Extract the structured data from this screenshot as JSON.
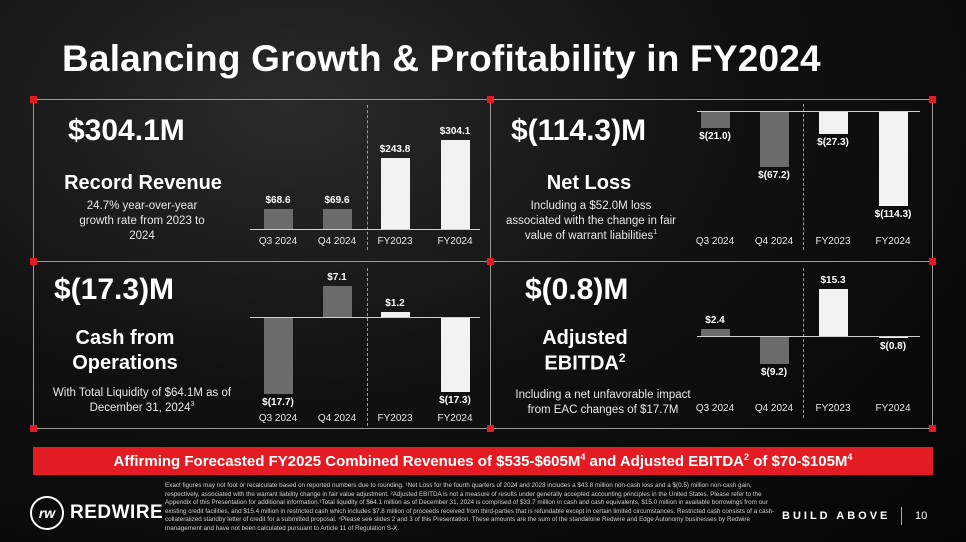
{
  "title": "Balancing Growth & Profitability in FY2024",
  "panels": [
    {
      "headline": "$304.1M",
      "subtitle": "Record Revenue",
      "description": "24.7% year-over-year growth rate from 2023 to 2024",
      "description_sup": "",
      "chart_data": {
        "type": "bar",
        "categories": [
          "Q3 2024",
          "Q4 2024",
          "FY2023",
          "FY2024"
        ],
        "values": [
          68.6,
          69.6,
          243.8,
          304.1
        ],
        "value_labels": [
          "$68.6",
          "$69.6",
          "$243.8",
          "$304.1"
        ],
        "colors": [
          "#6b6b6b",
          "#6b6b6b",
          "#f2f2f2",
          "#f2f2f2"
        ],
        "xlabel": "",
        "ylabel": ""
      }
    },
    {
      "headline": "$(114.3)M",
      "subtitle": "Net Loss",
      "description": "Including a $52.0M loss associated with the change in fair value of warrant liabilities",
      "description_sup": "1",
      "chart_data": {
        "type": "bar",
        "categories": [
          "Q3 2024",
          "Q4 2024",
          "FY2023",
          "FY2024"
        ],
        "values": [
          -21.0,
          -67.2,
          -27.3,
          -114.3
        ],
        "value_labels": [
          "$(21.0)",
          "$(67.2)",
          "$(27.3)",
          "$(114.3)"
        ],
        "colors": [
          "#6b6b6b",
          "#6b6b6b",
          "#f2f2f2",
          "#f2f2f2"
        ],
        "xlabel": "",
        "ylabel": ""
      }
    },
    {
      "headline": "$(17.3)M",
      "subtitle": "Cash from Operations",
      "description": "With Total Liquidity of $64.1M as of December 31, 2024",
      "description_sup": "3",
      "chart_data": {
        "type": "bar",
        "categories": [
          "Q3 2024",
          "Q4 2024",
          "FY2023",
          "FY2024"
        ],
        "values": [
          -17.7,
          7.1,
          1.2,
          -17.3
        ],
        "value_labels": [
          "$(17.7)",
          "$7.1",
          "$1.2",
          "$(17.3)"
        ],
        "colors": [
          "#6b6b6b",
          "#6b6b6b",
          "#f2f2f2",
          "#f2f2f2"
        ],
        "xlabel": "",
        "ylabel": ""
      }
    },
    {
      "headline": "$(0.8)M",
      "subtitle": "Adjusted EBITDA",
      "subtitle_sup": "2",
      "description": "Including a net unfavorable impact from EAC changes of $17.7M",
      "description_sup": "",
      "chart_data": {
        "type": "bar",
        "categories": [
          "Q3 2024",
          "Q4 2024",
          "FY2023",
          "FY2024"
        ],
        "values": [
          2.4,
          -9.2,
          15.3,
          -0.8
        ],
        "value_labels": [
          "$2.4",
          "$(9.2)",
          "$15.3",
          "$(0.8)"
        ],
        "colors": [
          "#6b6b6b",
          "#6b6b6b",
          "#f2f2f2",
          "#f2f2f2"
        ],
        "xlabel": "",
        "ylabel": ""
      }
    }
  ],
  "banner": {
    "part1": "Affirming Forecasted FY2025 Combined Revenues of $535-$605M",
    "sup1": "4",
    "part2": " and Adjusted EBITDA",
    "sup2": "2",
    "part3": " of $70-$105M",
    "sup3": "4"
  },
  "footnote": "Exact figures may not foot or recalculate based on reported numbers due to rounding. ¹Net Loss for the fourth quarters of 2024 and 2023 includes a $43.8 million non-cash loss and a $(0.5) million non-cash gain, respectively, associated with the warrant liability change in fair value adjustment. ²Adjusted EBITDA is not a measure of results under generally accepted accounting principles in the United States. Please refer to the Appendix of this Presentation for additional information.³Total liquidity of $64.1 million as of December 31, 2024 is comprised of $33.7 million in cash and cash equivalents, $15.0 million in available borrowings from our existing credit facilities, and $15.4 million in restricted cash which includes $7.8 million of proceeds received from third-parties that is refundable except in certain limited circumstances. Restricted cash consists of a cash-collateralized standby letter of credit for a submitted proposal. ⁴Please see slides 2 and 3 of this Presentation. These amounts are the sum of the standalone Redwire and Edge Autonomy businesses by Redwire management and have not been calculated pursuant to Article 11 of Regulation S-X.",
  "logo": {
    "mark": "rw",
    "name": "REDWIRE"
  },
  "tagline": "BUILD ABOVE",
  "page_number": "10",
  "colors": {
    "accent": "#e31b23",
    "dark_bar": "#6b6b6b",
    "light_bar": "#f2f2f2"
  }
}
